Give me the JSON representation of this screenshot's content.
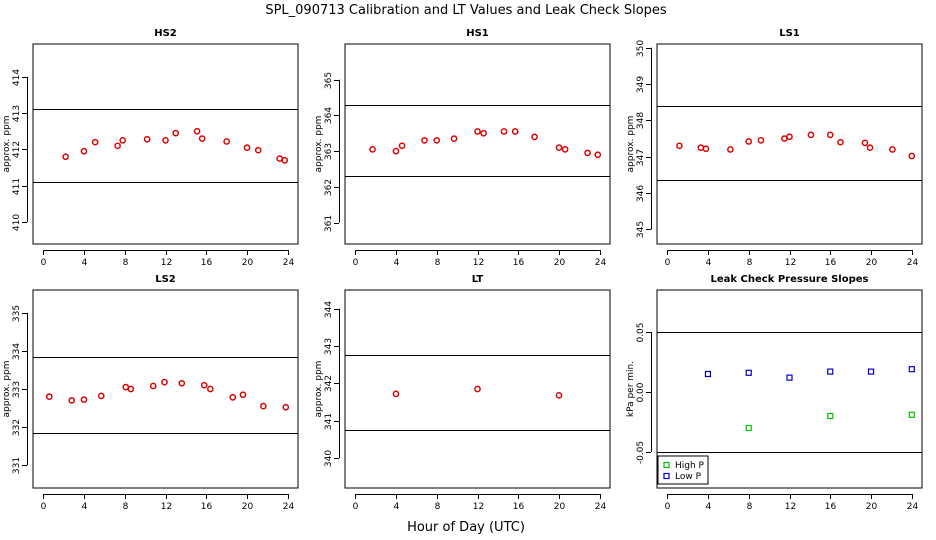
{
  "figure": {
    "title": "SPL_090713  Calibration and LT Values and Leak Check Slopes",
    "xlabel": "Hour of Day (UTC)"
  },
  "colors": {
    "cal_points": "#e00000",
    "high_p": "#00c000",
    "low_p": "#0000cc",
    "frame": "#000000"
  },
  "chart_data": [
    {
      "type": "scatter",
      "title": "HS2",
      "ylabel": "approx. ppm",
      "xlim": [
        -1,
        25
      ],
      "ylim": [
        409.4,
        414.9
      ],
      "xticks": [
        0,
        4,
        8,
        12,
        16,
        20,
        24
      ],
      "yticks": [
        410,
        411,
        412,
        413,
        414
      ],
      "hlines": [
        411.1,
        413.1
      ],
      "series": [
        {
          "marker": "circle",
          "color": "#e00000",
          "x": [
            2.2,
            4.0,
            5.1,
            7.3,
            7.8,
            10.2,
            12.0,
            13.0,
            15.1,
            15.6,
            18.0,
            20.0,
            21.1,
            23.2,
            23.7
          ],
          "y": [
            411.8,
            411.95,
            412.2,
            412.1,
            412.25,
            412.28,
            412.25,
            412.45,
            412.5,
            412.3,
            412.22,
            412.05,
            411.98,
            411.75,
            411.7
          ]
        }
      ]
    },
    {
      "type": "scatter",
      "title": "HS1",
      "ylabel": "approx. ppm",
      "xlim": [
        -1,
        25
      ],
      "ylim": [
        360.4,
        366.0
      ],
      "xticks": [
        0,
        4,
        8,
        12,
        16,
        20,
        24
      ],
      "yticks": [
        361,
        362,
        363,
        364,
        365
      ],
      "hlines": [
        362.3,
        364.3
      ],
      "series": [
        {
          "marker": "circle",
          "color": "#e00000",
          "x": [
            1.7,
            4.0,
            4.6,
            6.8,
            8.0,
            9.7,
            12.0,
            12.6,
            14.6,
            15.7,
            17.6,
            20.0,
            20.6,
            22.8,
            23.8
          ],
          "y": [
            363.05,
            363.0,
            363.15,
            363.3,
            363.3,
            363.35,
            363.55,
            363.5,
            363.55,
            363.55,
            363.4,
            363.1,
            363.05,
            362.95,
            362.9
          ]
        }
      ]
    },
    {
      "type": "scatter",
      "title": "LS1",
      "ylabel": "approx. ppm",
      "xlim": [
        -1,
        25
      ],
      "ylim": [
        344.6,
        350.1
      ],
      "xticks": [
        0,
        4,
        8,
        12,
        16,
        20,
        24
      ],
      "yticks": [
        345,
        346,
        347,
        348,
        349,
        350
      ],
      "hlines": [
        346.35,
        348.4
      ],
      "series": [
        {
          "marker": "circle",
          "color": "#e00000",
          "x": [
            1.2,
            3.3,
            3.8,
            6.2,
            8.0,
            9.2,
            11.5,
            12.0,
            14.1,
            16.0,
            17.0,
            19.4,
            19.9,
            22.1,
            24.0
          ],
          "y": [
            347.3,
            347.25,
            347.22,
            347.2,
            347.42,
            347.45,
            347.5,
            347.55,
            347.6,
            347.6,
            347.4,
            347.38,
            347.25,
            347.2,
            347.02
          ]
        }
      ]
    },
    {
      "type": "scatter",
      "title": "LS2",
      "ylabel": "approx. ppm",
      "xlim": [
        -1,
        25
      ],
      "ylim": [
        330.4,
        335.6
      ],
      "xticks": [
        0,
        4,
        8,
        12,
        16,
        20,
        24
      ],
      "yticks": [
        331,
        332,
        333,
        334,
        335
      ],
      "hlines": [
        331.85,
        333.85
      ],
      "series": [
        {
          "marker": "circle",
          "color": "#e00000",
          "x": [
            0.6,
            2.8,
            4.0,
            5.7,
            8.1,
            8.6,
            10.8,
            11.9,
            13.6,
            15.8,
            16.4,
            18.6,
            19.6,
            21.6,
            23.8
          ],
          "y": [
            332.8,
            332.7,
            332.72,
            332.82,
            333.05,
            333.0,
            333.08,
            333.18,
            333.15,
            333.1,
            333.0,
            332.78,
            332.85,
            332.55,
            332.52
          ]
        }
      ]
    },
    {
      "type": "scatter",
      "title": "LT",
      "ylabel": "approx. ppm",
      "xlim": [
        -1,
        25
      ],
      "ylim": [
        339.2,
        344.5
      ],
      "xticks": [
        0,
        4,
        8,
        12,
        16,
        20,
        24
      ],
      "yticks": [
        340,
        341,
        342,
        343,
        344
      ],
      "hlines": [
        340.75,
        342.75
      ],
      "series": [
        {
          "marker": "circle",
          "color": "#e00000",
          "x": [
            4.0,
            12.0,
            20.0
          ],
          "y": [
            341.72,
            341.85,
            341.68
          ]
        }
      ]
    },
    {
      "type": "scatter",
      "title": "Leak Check Pressure Slopes",
      "ylabel": "kPa per min.",
      "xlim": [
        -1,
        25
      ],
      "ylim": [
        -0.08,
        0.085
      ],
      "xticks": [
        0,
        4,
        8,
        12,
        16,
        20,
        24
      ],
      "yticks": [
        -0.05,
        0.0,
        0.05
      ],
      "ytick_labels": [
        "-0.05",
        "0.00",
        "0.05"
      ],
      "hlines": [
        -0.05,
        0.05
      ],
      "legend": {
        "position": "bottom-left",
        "entries": [
          "High P",
          "Low P"
        ]
      },
      "series": [
        {
          "name": "High P",
          "marker": "square",
          "color": "#00c000",
          "x": [
            8,
            16,
            24
          ],
          "y": [
            -0.03,
            -0.02,
            -0.019
          ]
        },
        {
          "name": "Low P",
          "marker": "square",
          "color": "#0000cc",
          "x": [
            4,
            8,
            12,
            16,
            20,
            24
          ],
          "y": [
            0.015,
            0.016,
            0.012,
            0.017,
            0.017,
            0.019
          ]
        }
      ]
    }
  ]
}
